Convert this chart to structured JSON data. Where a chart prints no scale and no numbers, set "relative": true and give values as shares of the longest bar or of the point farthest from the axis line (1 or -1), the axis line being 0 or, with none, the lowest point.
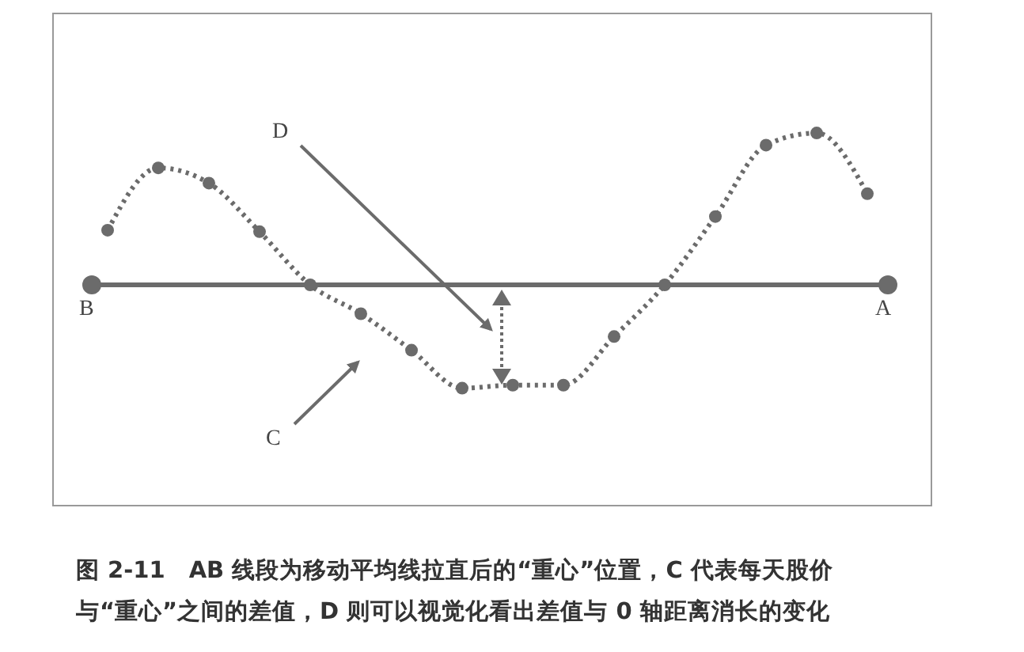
{
  "chart_data": {
    "type": "line",
    "relative": true,
    "categories": [
      null,
      null,
      null,
      null,
      null,
      null,
      null,
      null,
      null,
      null,
      null,
      null,
      null,
      null,
      null,
      null
    ],
    "series": [
      {
        "color": "#6b6b6b",
        "values": [
          0.36,
          0.77,
          0.67,
          0.35,
          0,
          -0.19,
          -0.43,
          -0.68,
          -0.66,
          -0.66,
          -0.34,
          0,
          0.45,
          0.92,
          1,
          0.6
        ]
      }
    ],
    "marker": "circle",
    "line_style": "dotted",
    "ref_lines": [
      {
        "axis": "y",
        "value": 0,
        "color": "#6b6b6b"
      }
    ],
    "annotations": [
      "B",
      "A",
      "C",
      "D",
      "图 2-11　AB 线段为移动平均线拉直后的“重心”位置，C 代表每天股价与“重心”之间的差值，D 则可以视觉化看出差值与 0 轴距离消长的变化"
    ]
  }
}
